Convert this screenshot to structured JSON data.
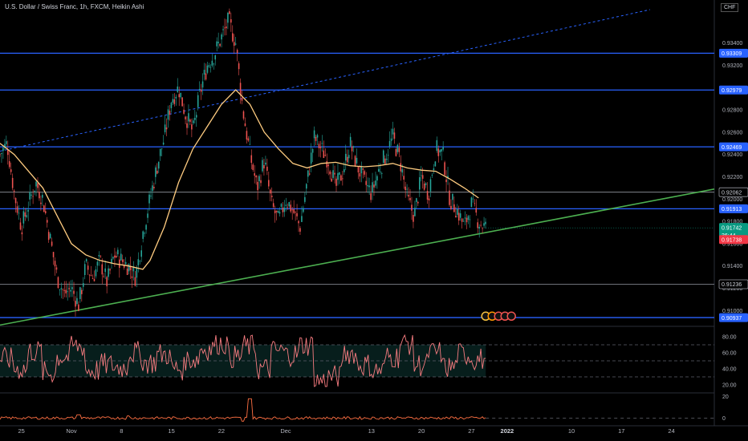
{
  "header": {
    "title": "U.S. Dollar / Swiss Franc, 1h, FXCM, Heikin Ashi",
    "currency_badge": "CHF"
  },
  "chart_data": [
    {
      "type": "candlestick",
      "title": "U.S. Dollar / Swiss Franc, 1h, FXCM, Heikin Ashi",
      "ylim": [
        0.9088,
        0.937
      ],
      "price_ticks": [
        0.934,
        0.932,
        0.93,
        0.928,
        0.926,
        0.924,
        0.922,
        0.92,
        0.918,
        0.916,
        0.914,
        0.912,
        0.91
      ],
      "price_tick_labels": [
        "0.93400",
        "0.93200",
        "0.93000",
        "0.92800",
        "0.92600",
        "0.92400",
        "0.92200",
        "0.92000",
        "0.91800",
        "0.91600",
        "0.91400",
        "0.91200",
        "0.91000"
      ],
      "x_tick_labels": [
        "25",
        "Nov",
        "8",
        "15",
        "22",
        "Dec",
        "13",
        "20",
        "27",
        "2022",
        "10",
        "17",
        "24"
      ],
      "x_tick_days": [
        -7,
        0,
        7,
        14,
        21,
        30,
        42,
        49,
        56,
        61,
        70,
        77,
        84
      ],
      "x_range_days": [
        -10,
        90
      ],
      "price_path": [
        {
          "day": -10,
          "close": 0.924
        },
        {
          "day": -9,
          "close": 0.925
        },
        {
          "day": -8,
          "close": 0.9205
        },
        {
          "day": -7,
          "close": 0.9175
        },
        {
          "day": -6,
          "close": 0.9195
        },
        {
          "day": -5,
          "close": 0.9215
        },
        {
          "day": -4,
          "close": 0.92
        },
        {
          "day": -3,
          "close": 0.9165
        },
        {
          "day": -2,
          "close": 0.913
        },
        {
          "day": -1,
          "close": 0.9115
        },
        {
          "day": 0,
          "close": 0.912
        },
        {
          "day": 1,
          "close": 0.9105
        },
        {
          "day": 2,
          "close": 0.914
        },
        {
          "day": 3,
          "close": 0.913
        },
        {
          "day": 4,
          "close": 0.9145
        },
        {
          "day": 5,
          "close": 0.9125
        },
        {
          "day": 6,
          "close": 0.915
        },
        {
          "day": 7,
          "close": 0.9145
        },
        {
          "day": 8,
          "close": 0.914
        },
        {
          "day": 9,
          "close": 0.913
        },
        {
          "day": 10,
          "close": 0.917
        },
        {
          "day": 11,
          "close": 0.92
        },
        {
          "day": 12,
          "close": 0.923
        },
        {
          "day": 13,
          "close": 0.9255
        },
        {
          "day": 14,
          "close": 0.929
        },
        {
          "day": 15,
          "close": 0.93
        },
        {
          "day": 16,
          "close": 0.9275
        },
        {
          "day": 17,
          "close": 0.926
        },
        {
          "day": 18,
          "close": 0.9295
        },
        {
          "day": 19,
          "close": 0.932
        },
        {
          "day": 20,
          "close": 0.933
        },
        {
          "day": 21,
          "close": 0.9345
        },
        {
          "day": 22,
          "close": 0.936
        },
        {
          "day": 23,
          "close": 0.934
        },
        {
          "day": 24,
          "close": 0.928
        },
        {
          "day": 25,
          "close": 0.924
        },
        {
          "day": 26,
          "close": 0.921
        },
        {
          "day": 27,
          "close": 0.9235
        },
        {
          "day": 28,
          "close": 0.9195
        },
        {
          "day": 29,
          "close": 0.918
        },
        {
          "day": 30,
          "close": 0.92
        },
        {
          "day": 31,
          "close": 0.919
        },
        {
          "day": 32,
          "close": 0.9175
        },
        {
          "day": 33,
          "close": 0.9215
        },
        {
          "day": 34,
          "close": 0.9255
        },
        {
          "day": 35,
          "close": 0.9245
        },
        {
          "day": 36,
          "close": 0.9235
        },
        {
          "day": 37,
          "close": 0.921
        },
        {
          "day": 38,
          "close": 0.9225
        },
        {
          "day": 39,
          "close": 0.925
        },
        {
          "day": 40,
          "close": 0.923
        },
        {
          "day": 41,
          "close": 0.9215
        },
        {
          "day": 42,
          "close": 0.9205
        },
        {
          "day": 43,
          "close": 0.9225
        },
        {
          "day": 44,
          "close": 0.924
        },
        {
          "day": 45,
          "close": 0.9255
        },
        {
          "day": 46,
          "close": 0.9235
        },
        {
          "day": 47,
          "close": 0.92
        },
        {
          "day": 48,
          "close": 0.9185
        },
        {
          "day": 49,
          "close": 0.922
        },
        {
          "day": 50,
          "close": 0.9205
        },
        {
          "day": 51,
          "close": 0.9245
        },
        {
          "day": 52,
          "close": 0.924
        },
        {
          "day": 53,
          "close": 0.92
        },
        {
          "day": 54,
          "close": 0.919
        },
        {
          "day": 55,
          "close": 0.9175
        },
        {
          "day": 56,
          "close": 0.9195
        },
        {
          "day": 57,
          "close": 0.918
        },
        {
          "day": 58,
          "close": 0.9174
        }
      ],
      "moving_average": [
        {
          "day": -10,
          "value": 0.925
        },
        {
          "day": -8,
          "value": 0.924
        },
        {
          "day": -6,
          "value": 0.9225
        },
        {
          "day": -4,
          "value": 0.921
        },
        {
          "day": -2,
          "value": 0.9185
        },
        {
          "day": 0,
          "value": 0.916
        },
        {
          "day": 2,
          "value": 0.915
        },
        {
          "day": 4,
          "value": 0.9145
        },
        {
          "day": 6,
          "value": 0.9142
        },
        {
          "day": 8,
          "value": 0.914
        },
        {
          "day": 10,
          "value": 0.9137
        },
        {
          "day": 11,
          "value": 0.9145
        },
        {
          "day": 13,
          "value": 0.9175
        },
        {
          "day": 15,
          "value": 0.9215
        },
        {
          "day": 17,
          "value": 0.9245
        },
        {
          "day": 19,
          "value": 0.9265
        },
        {
          "day": 21,
          "value": 0.9285
        },
        {
          "day": 23,
          "value": 0.9298
        },
        {
          "day": 25,
          "value": 0.9285
        },
        {
          "day": 27,
          "value": 0.926
        },
        {
          "day": 29,
          "value": 0.9245
        },
        {
          "day": 31,
          "value": 0.9232
        },
        {
          "day": 33,
          "value": 0.9228
        },
        {
          "day": 35,
          "value": 0.9232
        },
        {
          "day": 37,
          "value": 0.9233
        },
        {
          "day": 39,
          "value": 0.923
        },
        {
          "day": 41,
          "value": 0.9229
        },
        {
          "day": 43,
          "value": 0.923
        },
        {
          "day": 45,
          "value": 0.9232
        },
        {
          "day": 47,
          "value": 0.9228
        },
        {
          "day": 49,
          "value": 0.9226
        },
        {
          "day": 51,
          "value": 0.9225
        },
        {
          "day": 53,
          "value": 0.9218
        },
        {
          "day": 55,
          "value": 0.921
        },
        {
          "day": 57,
          "value": 0.9201
        }
      ],
      "horizontal_levels": [
        {
          "value": 0.93309,
          "label": "0.93309",
          "color": "#2962ff"
        },
        {
          "value": 0.92979,
          "label": "0.92979",
          "color": "#2962ff"
        },
        {
          "value": 0.92469,
          "label": "0.92469",
          "color": "#2962ff"
        },
        {
          "value": 0.92062,
          "label": "0.92062",
          "color": "#9598a1"
        },
        {
          "value": 0.91913,
          "label": "0.91913",
          "color": "#2962ff"
        },
        {
          "value": 0.91236,
          "label": "0.91236",
          "color": "#9598a1"
        },
        {
          "value": 0.90937,
          "label": "0.90937",
          "color": "#2962ff"
        }
      ],
      "trendlines": [
        {
          "style": "solid",
          "color": "#4caf50",
          "from": {
            "day": -10,
            "value": 0.9087
          },
          "to": {
            "day": 90,
            "value": 0.9209
          }
        },
        {
          "style": "dashed",
          "color": "#2962ff",
          "from": {
            "day": -10,
            "value": 0.9243
          },
          "to": {
            "day": 81,
            "value": 0.937
          }
        }
      ],
      "last_price": {
        "value": 0.91742,
        "label": "0.91742",
        "countdown": "36:44",
        "color": "#089981"
      },
      "bid_price": {
        "value": 0.91738,
        "label": "0.91738",
        "color": "#f23645"
      },
      "colors": {
        "up": "#26a69a",
        "down": "#ef5350",
        "ma": "#ffcc80"
      },
      "currency": "CHF"
    },
    {
      "type": "line",
      "panel": "oscillator",
      "ylim": [
        12,
        88
      ],
      "y_tick_labels": [
        "80.00",
        "60.00",
        "40.00",
        "20.00"
      ],
      "y_ticks": [
        80,
        60,
        40,
        20
      ],
      "band": [
        30,
        70
      ],
      "midline": 50,
      "color": "#f77c80",
      "values_every_2_days": [
        52,
        40,
        62,
        35,
        55,
        68,
        38,
        45,
        42,
        60,
        48,
        58,
        40,
        52,
        65,
        72,
        55,
        68,
        40,
        62,
        58,
        70,
        25,
        30,
        60,
        45,
        38,
        55,
        72,
        45,
        60,
        42,
        58,
        52,
        40
      ]
    },
    {
      "type": "line",
      "panel": "histogram",
      "ylim": [
        -5,
        22
      ],
      "y_tick_labels": [
        "20",
        "0"
      ],
      "y_ticks": [
        20,
        0
      ],
      "color": "#ff7043",
      "spikes": [
        {
          "day": 1,
          "value": 3
        },
        {
          "day": 8,
          "value": 2
        },
        {
          "day": 24,
          "value": -3
        },
        {
          "day": 25,
          "value": 18
        }
      ]
    }
  ]
}
